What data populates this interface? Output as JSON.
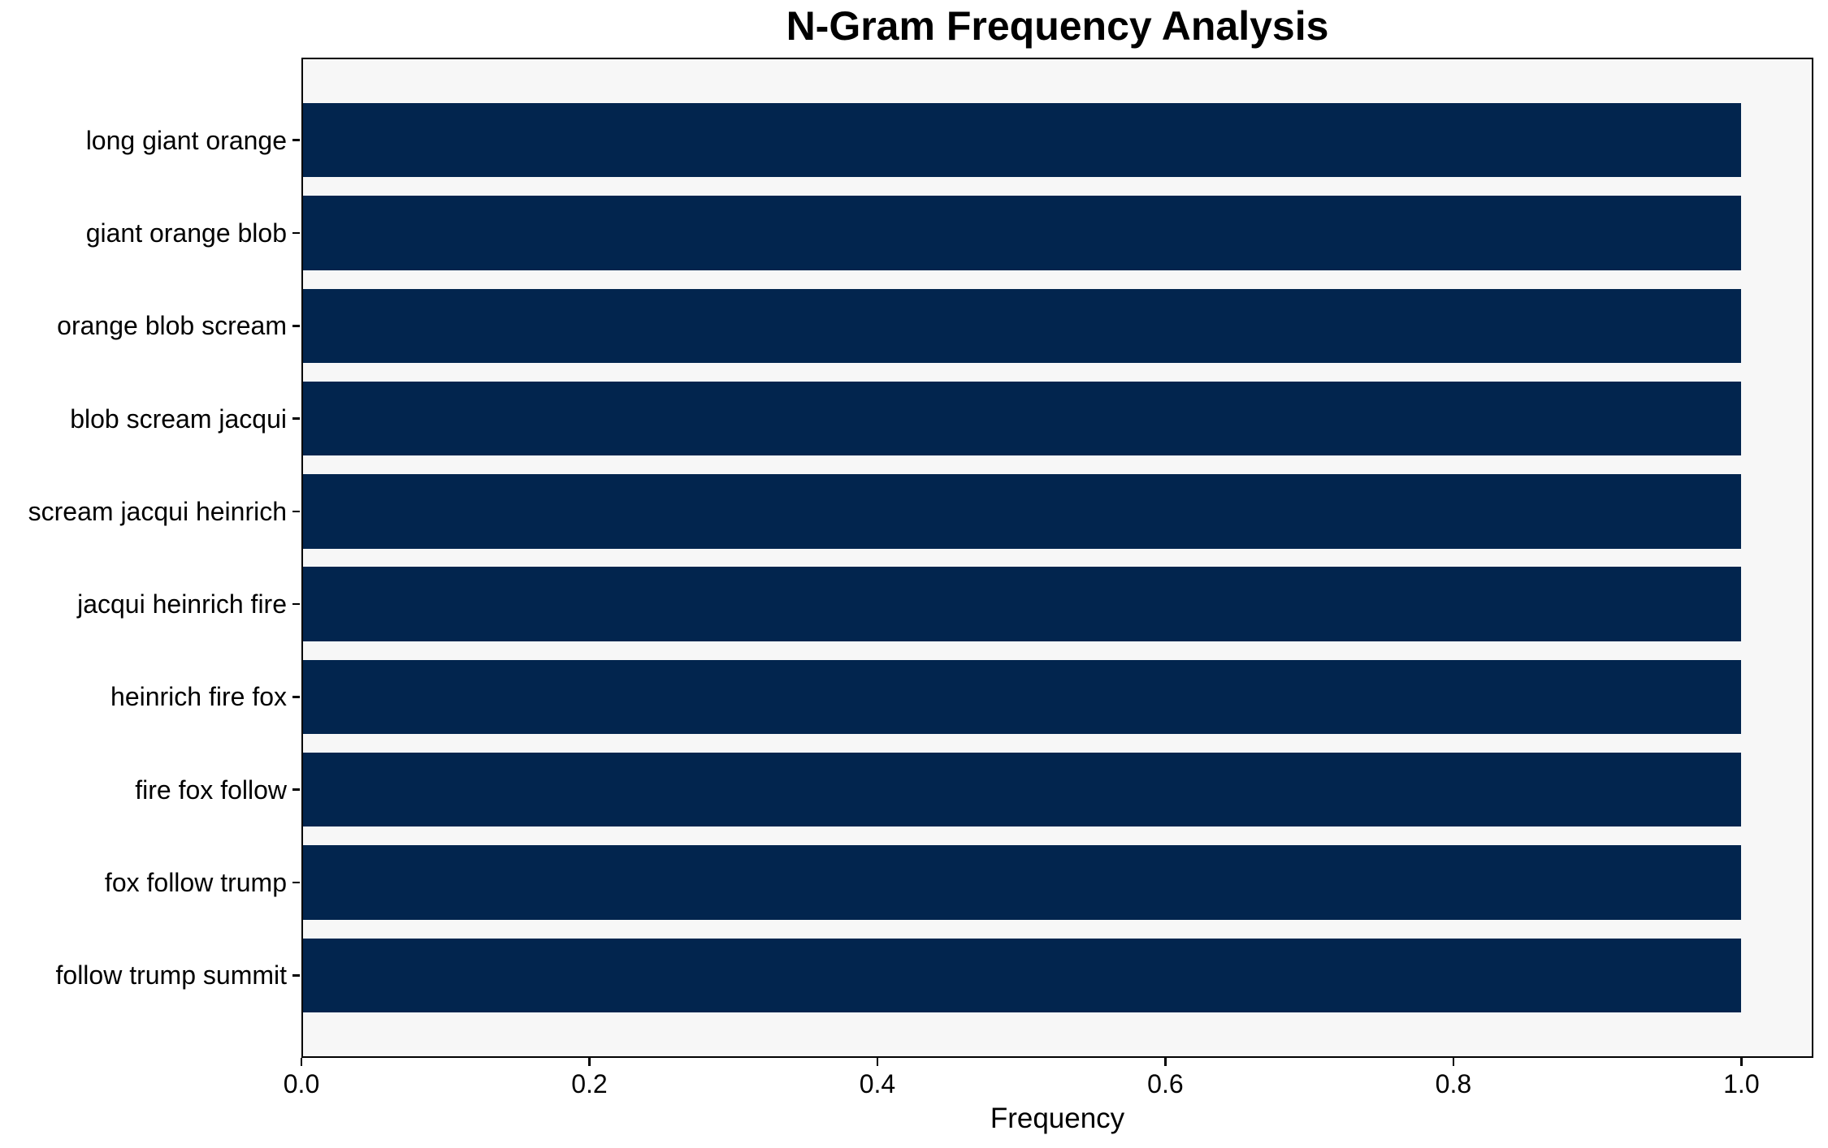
{
  "chart_data": {
    "type": "bar",
    "orientation": "horizontal",
    "title": "N-Gram Frequency Analysis",
    "xlabel": "Frequency",
    "ylabel": "",
    "categories": [
      "long giant orange",
      "giant orange blob",
      "orange blob scream",
      "blob scream jacqui",
      "scream jacqui heinrich",
      "jacqui heinrich fire",
      "heinrich fire fox",
      "fire fox follow",
      "fox follow trump",
      "follow trump summit"
    ],
    "values": [
      1.0,
      1.0,
      1.0,
      1.0,
      1.0,
      1.0,
      1.0,
      1.0,
      1.0,
      1.0
    ],
    "xlim": [
      0,
      1.05
    ],
    "xticks": [
      0.0,
      0.2,
      0.4,
      0.6,
      0.8,
      1.0
    ],
    "xtick_labels": [
      "0.0",
      "0.2",
      "0.4",
      "0.6",
      "0.8",
      "1.0"
    ],
    "grid": false,
    "legend": false,
    "bar_height_fraction": 0.8,
    "bar_color": "#02254e",
    "plot_background": "#f7f7f7",
    "figure_background": "#ffffff",
    "spine_color": "#000000",
    "text_color": "#000000"
  }
}
